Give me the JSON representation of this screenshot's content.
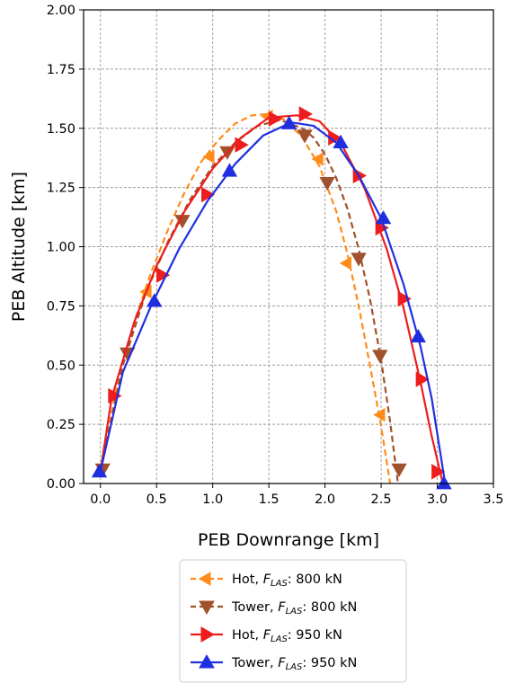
{
  "chart_data": {
    "type": "line",
    "xlabel": "PEB Downrange [km]",
    "ylabel": "PEB Altitude [km]",
    "xlim": [
      -0.15,
      3.5
    ],
    "ylim": [
      0.0,
      2.0
    ],
    "x_ticks": [
      "0.0",
      "0.5",
      "1.0",
      "1.5",
      "2.0",
      "2.5",
      "3.0",
      "3.5"
    ],
    "y_ticks": [
      "0.00",
      "0.25",
      "0.50",
      "0.75",
      "1.00",
      "1.25",
      "1.50",
      "1.75",
      "2.00"
    ],
    "grid": true,
    "legend_position": "bottom-center",
    "series": [
      {
        "name": "Hot,     F_LAS: 800 kN",
        "label_prefix": "Hot,     ",
        "label_suffix": ": 800 kN",
        "color": "#ff8c1a",
        "linestyle": "dashed",
        "marker": "tri-left",
        "x": [
          0.0,
          0.15,
          0.3,
          0.45,
          0.6,
          0.75,
          0.9,
          1.05,
          1.2,
          1.35,
          1.5,
          1.65,
          1.8,
          1.95,
          2.1,
          2.2,
          2.3,
          2.4,
          2.5,
          2.58
        ],
        "y": [
          0.05,
          0.42,
          0.68,
          0.89,
          1.07,
          1.23,
          1.36,
          1.45,
          1.52,
          1.555,
          1.56,
          1.535,
          1.46,
          1.34,
          1.15,
          0.97,
          0.75,
          0.5,
          0.24,
          0.0
        ],
        "marker_x": [
          0.42,
          0.98,
          1.5,
          1.95,
          2.2,
          2.5
        ],
        "marker_y": [
          0.81,
          1.38,
          1.55,
          1.37,
          0.93,
          0.29
        ]
      },
      {
        "name": "Tower, F_LAS: 800 kN",
        "label_prefix": "Tower, ",
        "label_suffix": ": 800 kN",
        "color": "#a0522d",
        "linestyle": "dashed",
        "marker": "tri-down",
        "x": [
          0.0,
          0.2,
          0.4,
          0.6,
          0.8,
          1.0,
          1.2,
          1.4,
          1.6,
          1.8,
          1.9,
          2.0,
          2.1,
          2.2,
          2.3,
          2.4,
          2.5,
          2.58,
          2.65
        ],
        "y": [
          0.05,
          0.5,
          0.8,
          1.02,
          1.2,
          1.34,
          1.44,
          1.51,
          1.535,
          1.5,
          1.46,
          1.39,
          1.29,
          1.16,
          0.99,
          0.78,
          0.52,
          0.26,
          0.0
        ],
        "marker_x": [
          0.02,
          0.24,
          0.73,
          1.13,
          1.82,
          2.02,
          2.3,
          2.49,
          2.66
        ],
        "marker_y": [
          0.06,
          0.55,
          1.11,
          1.4,
          1.47,
          1.27,
          0.95,
          0.54,
          0.06
        ]
      },
      {
        "name": "Hot,     F_LAS: 950 kN",
        "label_prefix": "Hot,     ",
        "label_suffix": ": 950 kN",
        "color": "#ee1c1c",
        "linestyle": "solid",
        "marker": "tri-right",
        "x": [
          0.0,
          0.1,
          0.3,
          0.5,
          0.75,
          1.0,
          1.25,
          1.5,
          1.75,
          1.95,
          2.15,
          2.35,
          2.55,
          2.7,
          2.85,
          2.95,
          3.05
        ],
        "y": [
          0.05,
          0.36,
          0.68,
          0.92,
          1.15,
          1.33,
          1.46,
          1.545,
          1.555,
          1.53,
          1.43,
          1.25,
          0.99,
          0.74,
          0.43,
          0.2,
          0.0
        ],
        "marker_x": [
          0.12,
          0.55,
          0.95,
          1.25,
          1.55,
          1.82,
          2.08,
          2.3,
          2.5,
          2.7,
          2.86,
          3.0
        ],
        "marker_y": [
          0.37,
          0.88,
          1.22,
          1.43,
          1.54,
          1.56,
          1.46,
          1.3,
          1.08,
          0.78,
          0.44,
          0.05
        ]
      },
      {
        "name": "Tower, F_LAS: 950 kN",
        "label_prefix": "Tower, ",
        "label_suffix": ": 950 kN",
        "color": "#1f2fe0",
        "linestyle": "solid",
        "marker": "tri-up",
        "x": [
          0.0,
          0.2,
          0.45,
          0.7,
          0.95,
          1.2,
          1.45,
          1.7,
          1.9,
          2.1,
          2.3,
          2.5,
          2.7,
          2.85,
          2.95,
          3.07
        ],
        "y": [
          0.05,
          0.47,
          0.75,
          0.99,
          1.19,
          1.35,
          1.47,
          1.525,
          1.51,
          1.44,
          1.3,
          1.12,
          0.84,
          0.58,
          0.36,
          0.0
        ],
        "marker_x": [
          -0.01,
          0.48,
          1.15,
          1.68,
          2.14,
          2.52,
          2.83,
          3.06
        ],
        "marker_y": [
          0.05,
          0.77,
          1.32,
          1.52,
          1.44,
          1.12,
          0.62,
          0.0
        ]
      }
    ],
    "legend_variable": {
      "main": "F",
      "sub": "LAS"
    }
  }
}
